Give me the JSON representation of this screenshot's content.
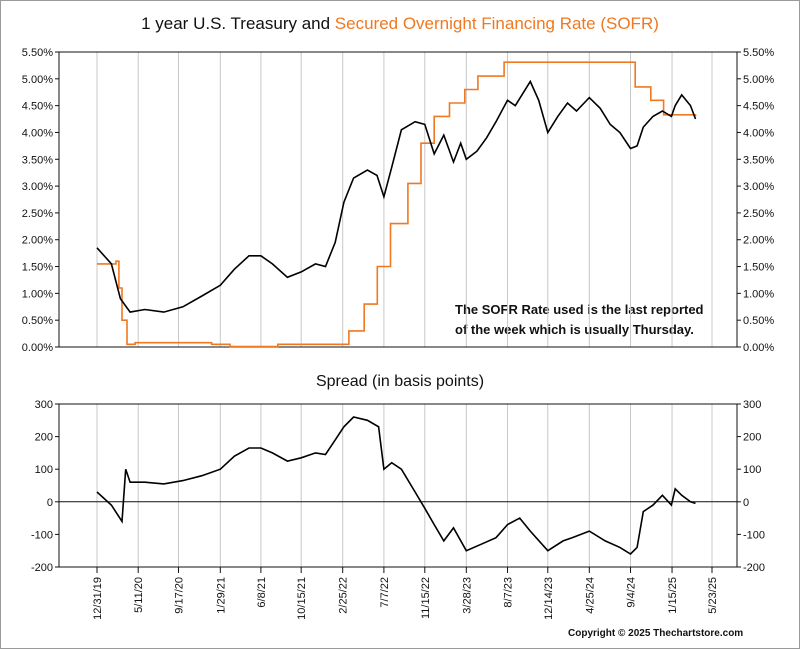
{
  "chart_data": [
    {
      "type": "line",
      "title_parts": [
        "1 year U.S. Treasury and ",
        "Secured Overnight Financing Rate (SOFR)"
      ],
      "ylim": [
        0,
        5.5
      ],
      "yticks": [
        "0.00%",
        "0.50%",
        "1.00%",
        "1.50%",
        "2.00%",
        "2.50%",
        "3.00%",
        "3.50%",
        "4.00%",
        "4.50%",
        "5.00%",
        "5.50%"
      ],
      "annotation": [
        "The SOFR Rate used is the last reported",
        "of the week which is usually Thursday."
      ],
      "series": [
        {
          "color": "#000000",
          "x": [
            "2019-12-31",
            "2020-02-15",
            "2020-03-15",
            "2020-04-15",
            "2020-06-01",
            "2020-08-01",
            "2020-10-01",
            "2020-12-01",
            "2021-01-29",
            "2021-03-15",
            "2021-05-01",
            "2021-06-08",
            "2021-07-15",
            "2021-09-01",
            "2021-10-15",
            "2021-11-30",
            "2022-01-01",
            "2022-02-01",
            "2022-03-01",
            "2022-04-01",
            "2022-05-15",
            "2022-06-15",
            "2022-07-07",
            "2022-08-01",
            "2022-09-01",
            "2022-10-15",
            "2022-11-15",
            "2022-12-15",
            "2023-01-15",
            "2023-02-15",
            "2023-03-10",
            "2023-03-28",
            "2023-05-01",
            "2023-06-01",
            "2023-07-01",
            "2023-08-07",
            "2023-09-01",
            "2023-10-19",
            "2023-11-15",
            "2023-12-14",
            "2024-01-15",
            "2024-02-15",
            "2024-03-15",
            "2024-04-25",
            "2024-05-30",
            "2024-07-01",
            "2024-08-01",
            "2024-09-04",
            "2024-09-25",
            "2024-10-15",
            "2024-11-15",
            "2024-12-15",
            "2025-01-13",
            "2025-01-25",
            "2025-02-15",
            "2025-03-15",
            "2025-03-31"
          ],
          "values": [
            1.85,
            1.55,
            0.9,
            0.65,
            0.7,
            0.65,
            0.75,
            0.95,
            1.15,
            1.45,
            1.7,
            1.7,
            1.55,
            1.3,
            1.4,
            1.55,
            1.5,
            1.95,
            2.7,
            3.15,
            3.3,
            3.2,
            2.8,
            3.35,
            4.05,
            4.2,
            4.15,
            3.6,
            3.95,
            3.45,
            3.8,
            3.5,
            3.65,
            3.9,
            4.2,
            4.6,
            4.5,
            4.95,
            4.6,
            4.0,
            4.3,
            4.55,
            4.4,
            4.65,
            4.45,
            4.15,
            4.0,
            3.7,
            3.75,
            4.1,
            4.3,
            4.4,
            4.3,
            4.5,
            4.7,
            4.5,
            4.25
          ]
        },
        {
          "color": "#f07820",
          "x": [
            "2019-12-31",
            "2020-03-01",
            "2020-03-10",
            "2020-03-20",
            "2020-04-05",
            "2020-05-01",
            "2021-01-01",
            "2021-03-01",
            "2021-08-01",
            "2022-03-01",
            "2022-03-17",
            "2022-05-05",
            "2022-06-16",
            "2022-07-28",
            "2022-09-22",
            "2022-11-03",
            "2022-12-15",
            "2023-02-02",
            "2023-03-23",
            "2023-05-04",
            "2023-07-27",
            "2024-09-19",
            "2024-11-08",
            "2024-12-19",
            "2025-03-31"
          ],
          "values": [
            1.55,
            1.6,
            1.1,
            0.5,
            0.05,
            0.08,
            0.05,
            0.01,
            0.05,
            0.05,
            0.3,
            0.8,
            1.5,
            2.3,
            3.05,
            3.8,
            4.3,
            4.55,
            4.8,
            5.05,
            5.31,
            4.85,
            4.6,
            4.33,
            4.3
          ]
        }
      ]
    },
    {
      "type": "line",
      "title": "Spread (in basis points)",
      "ylim": [
        -200,
        300
      ],
      "yticks": [
        "-200",
        "-100",
        "0",
        "100",
        "200",
        "300"
      ],
      "xticks": [
        "12/31/19",
        "5/11/20",
        "9/17/20",
        "1/29/21",
        "6/8/21",
        "10/15/21",
        "2/25/22",
        "7/7/22",
        "11/15/22",
        "3/28/23",
        "8/7/23",
        "12/14/23",
        "4/25/24",
        "9/4/24",
        "1/15/25",
        "5/23/25"
      ],
      "series": [
        {
          "color": "#000000",
          "x": [
            "2019-12-31",
            "2020-02-15",
            "2020-03-20",
            "2020-04-01",
            "2020-04-15",
            "2020-06-01",
            "2020-08-01",
            "2020-10-01",
            "2020-12-01",
            "2021-01-29",
            "2021-03-15",
            "2021-05-01",
            "2021-06-08",
            "2021-07-15",
            "2021-09-01",
            "2021-10-15",
            "2021-11-30",
            "2022-01-01",
            "2022-02-01",
            "2022-03-01",
            "2022-04-01",
            "2022-05-15",
            "2022-06-20",
            "2022-07-07",
            "2022-08-01",
            "2022-09-01",
            "2022-10-15",
            "2022-11-15",
            "2022-12-15",
            "2023-01-15",
            "2023-02-15",
            "2023-03-28",
            "2023-05-15",
            "2023-07-01",
            "2023-08-07",
            "2023-09-15",
            "2023-10-19",
            "2023-12-14",
            "2024-02-01",
            "2024-03-01",
            "2024-04-25",
            "2024-06-15",
            "2024-08-01",
            "2024-09-04",
            "2024-09-25",
            "2024-10-15",
            "2024-11-15",
            "2024-12-15",
            "2025-01-13",
            "2025-01-25",
            "2025-02-15",
            "2025-03-15",
            "2025-03-31"
          ],
          "values": [
            30,
            -10,
            -60,
            100,
            60,
            60,
            55,
            65,
            80,
            100,
            140,
            165,
            165,
            150,
            125,
            135,
            150,
            145,
            190,
            230,
            260,
            250,
            230,
            100,
            120,
            100,
            30,
            -20,
            -70,
            -120,
            -80,
            -150,
            -130,
            -110,
            -70,
            -50,
            -90,
            -150,
            -120,
            -110,
            -90,
            -120,
            -140,
            -160,
            -140,
            -30,
            -10,
            20,
            -10,
            40,
            20,
            0,
            -5
          ]
        }
      ]
    }
  ],
  "copyright": "Copyright © 2025 Thechartstore.com"
}
